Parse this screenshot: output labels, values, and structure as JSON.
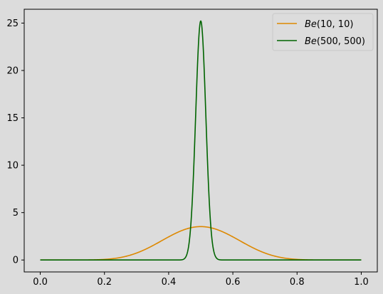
{
  "chart_data": {
    "type": "line",
    "title": "",
    "xlabel": "",
    "ylabel": "",
    "xlim": [
      -0.05,
      1.05
    ],
    "ylim": [
      -1.26,
      26.46
    ],
    "x_ticks": [
      0.0,
      0.2,
      0.4,
      0.6,
      0.8,
      1.0
    ],
    "x_tick_labels": [
      "0.0",
      "0.2",
      "0.4",
      "0.6",
      "0.8",
      "1.0"
    ],
    "y_ticks": [
      0,
      5,
      10,
      15,
      20,
      25
    ],
    "y_tick_labels": [
      "0",
      "5",
      "10",
      "15",
      "20",
      "25"
    ],
    "grid": false,
    "legend_position": "top-right",
    "series": [
      {
        "name": "Be(10, 10)",
        "label_func": "Be",
        "label_args": "(10, 10)",
        "alpha": 10,
        "beta": 10,
        "color": "#dd8800"
      },
      {
        "name": "Be(500, 500)",
        "label_func": "Be",
        "label_args": "(500, 500)",
        "alpha": 500,
        "beta": 500,
        "color": "#006400"
      }
    ],
    "x_range": [
      0.0,
      1.0
    ],
    "samples": 1000
  },
  "colors": {
    "background": "#dcdcdc",
    "axes": "#000000"
  }
}
